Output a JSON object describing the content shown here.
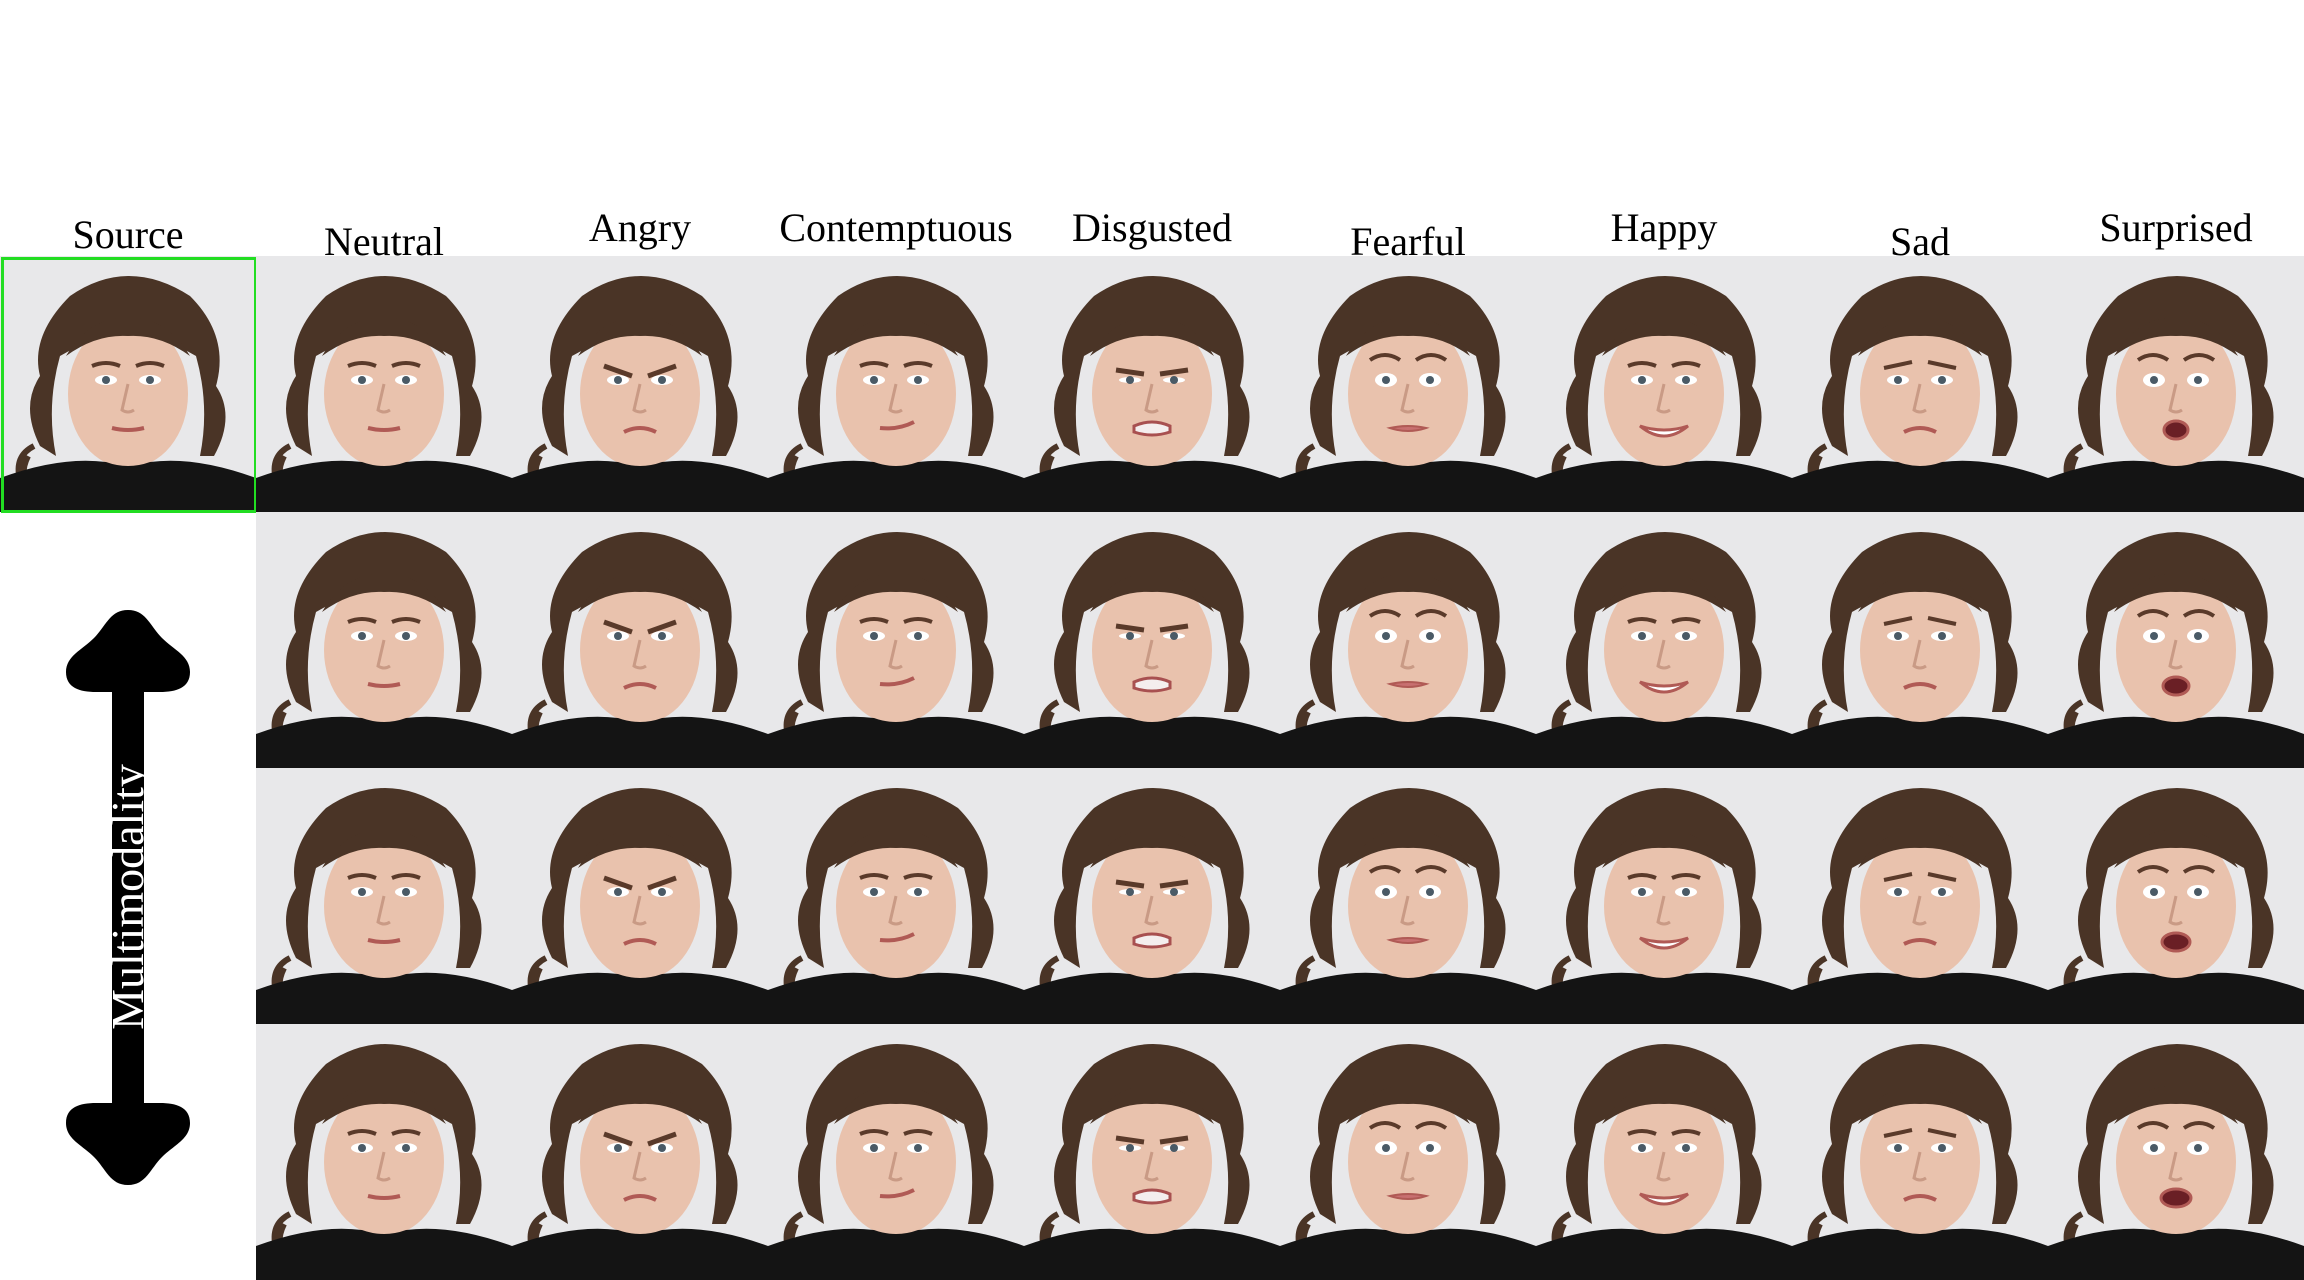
{
  "source_label": "Source",
  "columns": [
    "Neutral",
    "Angry",
    "Contemptuous",
    "Disgusted",
    "Fearful",
    "Happy",
    "Sad",
    "Surprised"
  ],
  "rows": 4,
  "axis_label": "Multimodality",
  "source_highlight_color": "#22dd22",
  "face_image_description": "Portrait photo of a child with brown curly hair wearing a black top against a light grey background",
  "expressions_by_column": [
    "neutral",
    "angry",
    "contemptuous",
    "disgusted",
    "fearful",
    "happy",
    "sad",
    "surprised"
  ]
}
